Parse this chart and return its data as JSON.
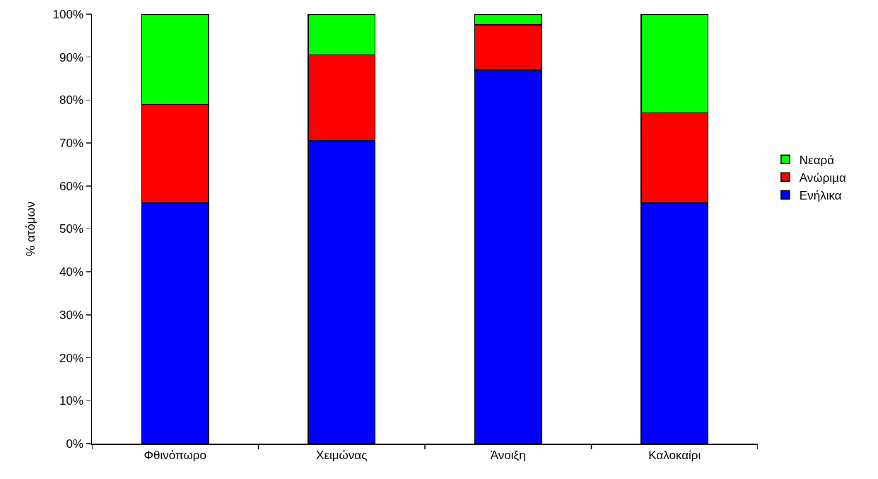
{
  "chart_data": {
    "type": "bar",
    "stacked": true,
    "ylabel": "% ατόμων",
    "categories": [
      "Φθινόπωρο",
      "Χειμώνας",
      "Άνοιξη",
      "Καλοκαίρι"
    ],
    "series": [
      {
        "name": "Ενήλικα",
        "color": "#0000ff",
        "values": [
          56,
          70.5,
          87,
          56
        ]
      },
      {
        "name": "Ανώριμα",
        "color": "#ff0000",
        "values": [
          23,
          20,
          10.5,
          21
        ]
      },
      {
        "name": "Νεαρά",
        "color": "#00ff00",
        "values": [
          21,
          9.5,
          2.5,
          23
        ]
      }
    ],
    "ylim": [
      0,
      100
    ],
    "yticks": [
      {
        "value": 0,
        "label": "0%"
      },
      {
        "value": 10,
        "label": "10%"
      },
      {
        "value": 20,
        "label": "20%"
      },
      {
        "value": 30,
        "label": "30%"
      },
      {
        "value": 40,
        "label": "40%"
      },
      {
        "value": 50,
        "label": "50%"
      },
      {
        "value": 60,
        "label": "60%"
      },
      {
        "value": 70,
        "label": "70%"
      },
      {
        "value": 80,
        "label": "80%"
      },
      {
        "value": 90,
        "label": "90%"
      },
      {
        "value": 100,
        "label": "100%"
      }
    ],
    "grid": false,
    "legend": "right"
  }
}
